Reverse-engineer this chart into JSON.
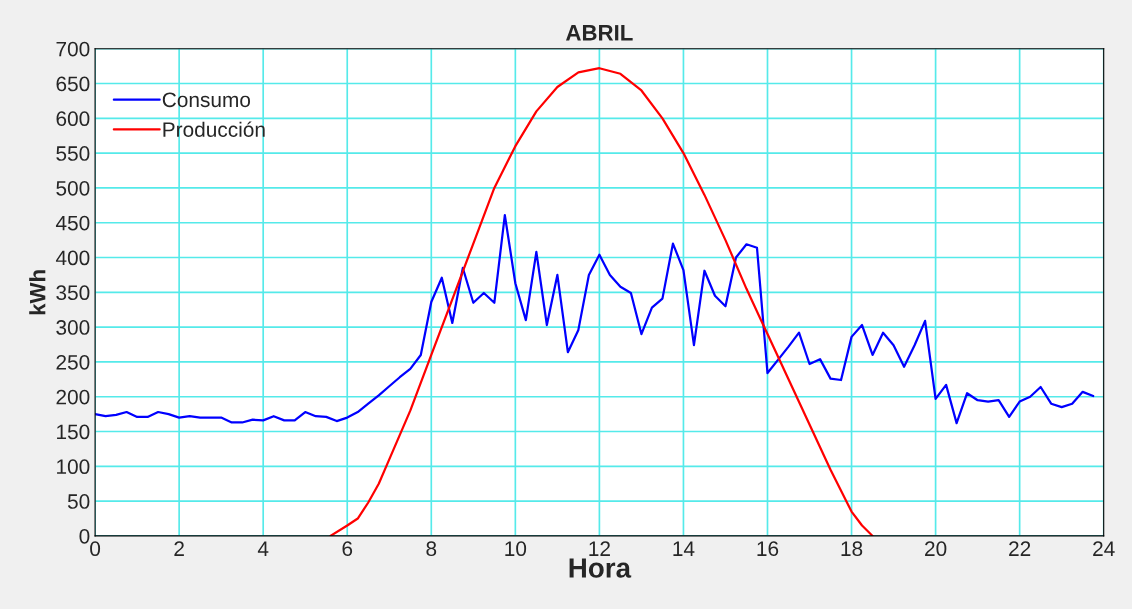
{
  "chart_data": {
    "type": "line",
    "title": "ABRIL",
    "xlabel": "Hora",
    "ylabel": "kWh",
    "xlim": [
      0,
      24
    ],
    "xticks": [
      0,
      2,
      4,
      6,
      8,
      10,
      12,
      14,
      16,
      18,
      20,
      22,
      24
    ],
    "ylim": [
      0,
      700
    ],
    "yticks": [
      0,
      50,
      100,
      150,
      200,
      250,
      300,
      350,
      400,
      450,
      500,
      550,
      600,
      650,
      700
    ],
    "grid": true,
    "legend": "top left",
    "series": [
      {
        "name": "Consumo",
        "color": "#0000ff",
        "x": [
          0,
          0.25,
          0.5,
          0.75,
          1,
          1.25,
          1.5,
          1.75,
          2,
          2.25,
          2.5,
          2.75,
          3,
          3.25,
          3.5,
          3.75,
          4,
          4.25,
          4.5,
          4.75,
          5,
          5.25,
          5.5,
          5.75,
          6,
          6.25,
          6.5,
          6.75,
          7,
          7.25,
          7.5,
          7.75,
          8,
          8.25,
          8.5,
          8.75,
          9,
          9.25,
          9.5,
          9.75,
          10,
          10.25,
          10.5,
          10.75,
          11,
          11.25,
          11.5,
          11.75,
          12,
          12.25,
          12.5,
          12.75,
          13,
          13.25,
          13.5,
          13.75,
          14,
          14.25,
          14.5,
          14.75,
          15,
          15.25,
          15.5,
          15.75,
          16,
          16.25,
          16.5,
          16.75,
          17,
          17.25,
          17.5,
          17.75,
          18,
          18.25,
          18.5,
          18.75,
          19,
          19.25,
          19.5,
          19.75,
          20,
          20.25,
          20.5,
          20.75,
          21,
          21.25,
          21.5,
          21.75,
          22,
          22.25,
          22.5,
          22.75,
          23,
          23.25,
          23.5,
          23.75
        ],
        "values": [
          175,
          172,
          174,
          178,
          171,
          171,
          178,
          175,
          170,
          172,
          170,
          170,
          170,
          163,
          163,
          167,
          166,
          172,
          166,
          166,
          178,
          172,
          171,
          165,
          170,
          178,
          190,
          202,
          215,
          228,
          240,
          260,
          336,
          371,
          306,
          385,
          335,
          349,
          335,
          461,
          363,
          310,
          408,
          303,
          375,
          264,
          296,
          375,
          404,
          375,
          358,
          349,
          290,
          328,
          341,
          420,
          382,
          274,
          381,
          345,
          330,
          400,
          419,
          414,
          234,
          253,
          272,
          292,
          247,
          254,
          226,
          224,
          286,
          303,
          260,
          292,
          274,
          243,
          274,
          309,
          197,
          217,
          162,
          205,
          195,
          193,
          195,
          171,
          193,
          200,
          214,
          190,
          185,
          190,
          207,
          201
        ]
      },
      {
        "name": "Producción",
        "color": "#ff0000",
        "x": [
          5.6,
          6,
          6.25,
          6.5,
          6.75,
          7,
          7.5,
          8,
          8.5,
          9,
          9.5,
          10,
          10.5,
          11,
          11.5,
          12,
          12.5,
          13,
          13.5,
          14,
          14.5,
          15,
          15.5,
          16,
          16.5,
          17,
          17.5,
          18,
          18.25,
          18.5
        ],
        "values": [
          0,
          15,
          25,
          48,
          75,
          110,
          180,
          260,
          340,
          420,
          500,
          560,
          610,
          645,
          666,
          672,
          664,
          640,
          600,
          550,
          490,
          425,
          355,
          290,
          225,
          160,
          95,
          35,
          15,
          0
        ]
      }
    ]
  }
}
